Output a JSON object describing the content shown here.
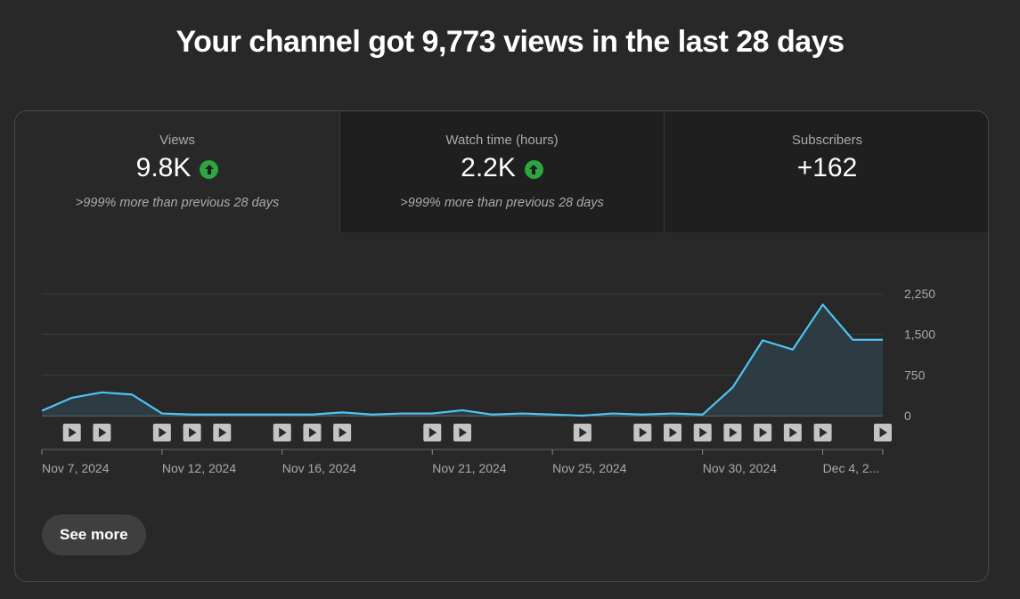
{
  "headline": "Your channel got 9,773 views in the last 28 days",
  "tabs": [
    {
      "label": "Views",
      "value": "9.8K",
      "trend_up": true,
      "sub": ">999% more than previous 28 days",
      "active": true
    },
    {
      "label": "Watch time (hours)",
      "value": "2.2K",
      "trend_up": true,
      "sub": ">999% more than previous 28 days",
      "active": false
    },
    {
      "label": "Subscribers",
      "value": "+162",
      "trend_up": false,
      "sub": "",
      "active": false
    }
  ],
  "chart_data": {
    "type": "area",
    "series": [
      {
        "values": [
          90,
          330,
          430,
          390,
          40,
          20,
          20,
          20,
          20,
          20,
          60,
          20,
          40,
          40,
          100,
          20,
          40,
          20,
          0,
          40,
          20,
          40,
          20,
          520,
          1390,
          1220,
          2050,
          1400,
          1400
        ]
      }
    ],
    "y_ticks": [
      "2,250",
      "1,500",
      "750",
      "0"
    ],
    "y_tick_values": [
      2250,
      1500,
      750,
      0
    ],
    "ylim": [
      0,
      2250
    ],
    "x_tick_labels": [
      {
        "label": "Nov 7, 2024",
        "index": 0
      },
      {
        "label": "Nov 12, 2024",
        "index": 4
      },
      {
        "label": "Nov 16, 2024",
        "index": 8
      },
      {
        "label": "Nov 21, 2024",
        "index": 13
      },
      {
        "label": "Nov 25, 2024",
        "index": 17
      },
      {
        "label": "Nov 30, 2024",
        "index": 22
      },
      {
        "label": "Dec 4, 2...",
        "index": 26
      }
    ],
    "video_markers_at_index": [
      1,
      2,
      4,
      5,
      6,
      8,
      9,
      10,
      13,
      14,
      18,
      20,
      21,
      22,
      23,
      24,
      25,
      26,
      28
    ],
    "line_color": "#4fc3f7",
    "area_color": "#2e3f47",
    "grid": true,
    "legend": "none"
  },
  "see_more_label": "See more",
  "colors": {
    "accent_up": "#2ba640",
    "background": "#282828"
  }
}
